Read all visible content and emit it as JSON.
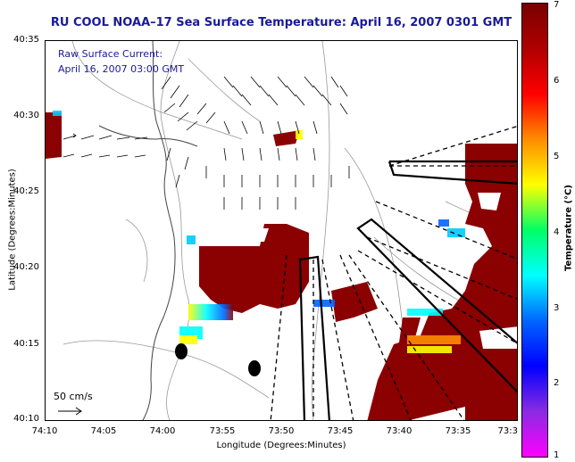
{
  "title": "RU COOL  NOAA–17  Sea Surface Temperature:  April 16, 2007 0301 GMT",
  "inset": {
    "line1": "Raw Surface Current:",
    "line2": "April 16, 2007 03:00 GMT"
  },
  "scale": {
    "label": "50 cm/s",
    "icon": "arrow-right-icon"
  },
  "axes": {
    "ylabel": "Latitude (Degrees:Minutes)",
    "xlabel": "Longitude (Degrees:Minutes)",
    "yticks": [
      "40:35",
      "40:30",
      "40:25",
      "40:20",
      "40:15",
      "40:10"
    ],
    "xticks": [
      "74:10",
      "74:05",
      "74:00",
      "73:55",
      "73:50",
      "73:45",
      "73:40",
      "73:35",
      "73:3"
    ]
  },
  "colorbar": {
    "label": "Temperature (°C)",
    "ticks": [
      "7",
      "6",
      "5",
      "4",
      "3",
      "2",
      "1"
    ],
    "range": [
      1,
      7
    ],
    "colors": [
      "#7a0000",
      "#b00000",
      "#ff0000",
      "#ff8c00",
      "#ffff00",
      "#00ff66",
      "#00ffff",
      "#0066ff",
      "#0000ff",
      "#8a2be2",
      "#ff00ff"
    ]
  },
  "map": {
    "land_color": "#ffffff",
    "sst_warm_color": "#8b0000",
    "vector_color": "#000000"
  }
}
